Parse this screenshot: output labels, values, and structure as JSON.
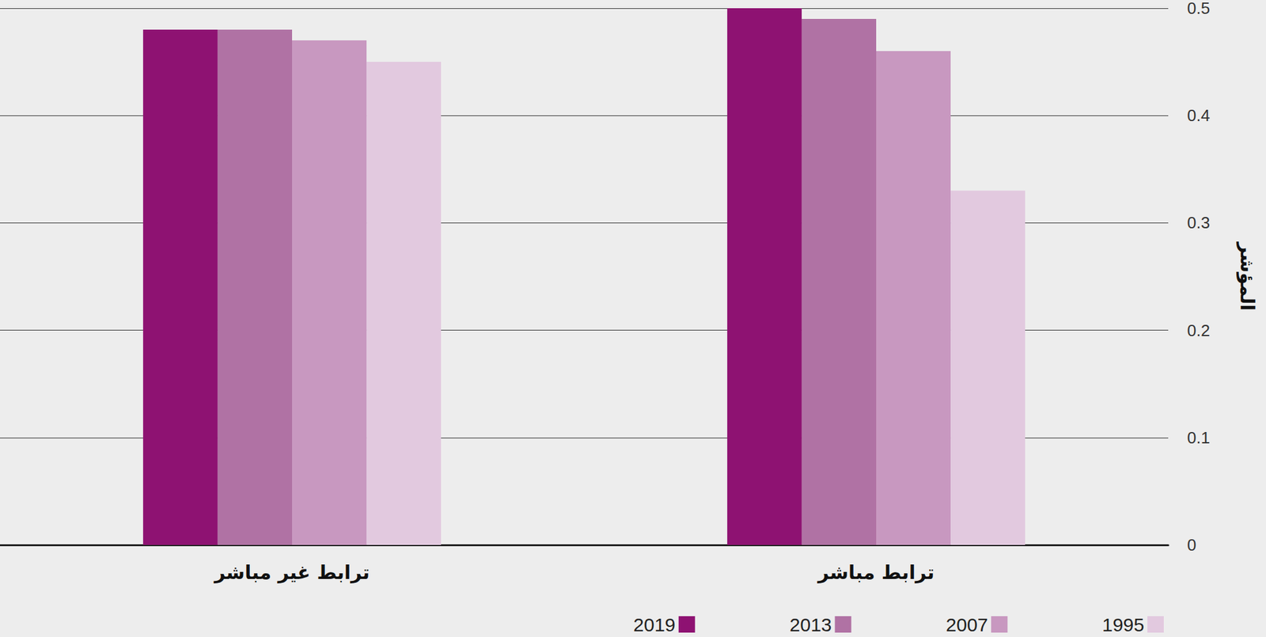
{
  "chart_data": {
    "type": "bar",
    "y_label": "المؤشر",
    "categories": [
      "ترابط غير مباشر",
      "ترابط مباشر"
    ],
    "series": [
      {
        "name": "2019",
        "color": "#8e1272",
        "values": [
          0.48,
          0.5
        ]
      },
      {
        "name": "2013",
        "color": "#b072a4",
        "values": [
          0.48,
          0.49
        ]
      },
      {
        "name": "2007",
        "color": "#c898c0",
        "values": [
          0.47,
          0.46
        ]
      },
      {
        "name": "1995",
        "color": "#e2c9df",
        "values": [
          0.45,
          0.33
        ]
      }
    ],
    "ylim": [
      0,
      0.5
    ],
    "yticks": [
      0,
      0.1,
      0.2,
      0.3,
      0.4,
      0.5
    ],
    "grid": true,
    "legend": "bottom-right"
  }
}
